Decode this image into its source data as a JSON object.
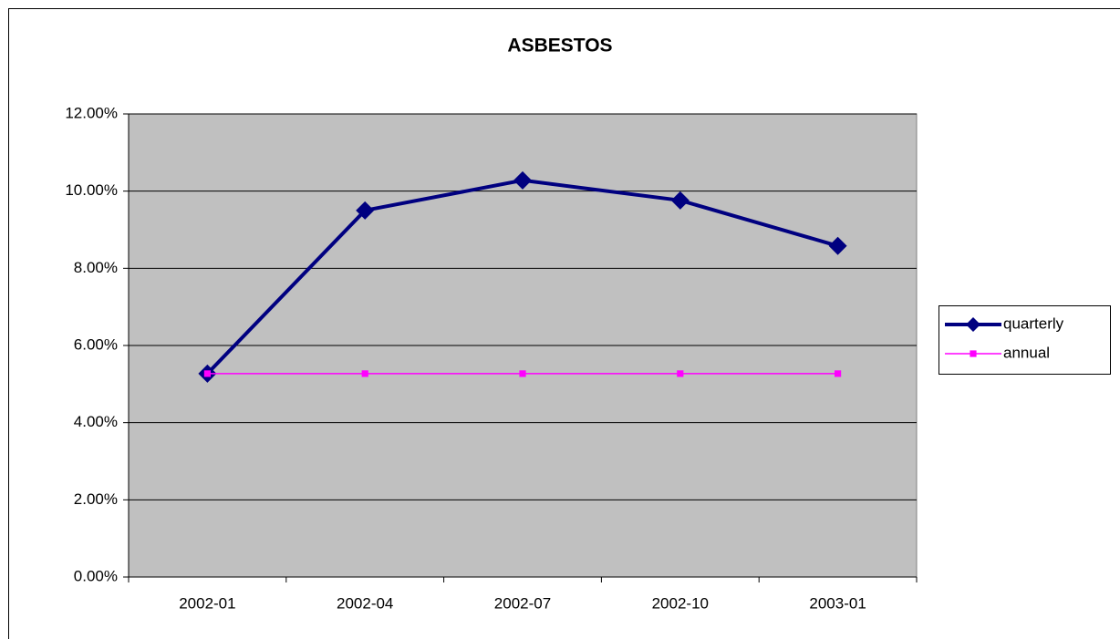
{
  "chart_data": {
    "type": "line",
    "title": "ASBESTOS",
    "categories": [
      "2002-01",
      "2002-04",
      "2002-07",
      "2002-10",
      "2003-01"
    ],
    "series": [
      {
        "name": "quarterly",
        "color": "#000080",
        "marker": "diamond",
        "values": [
          5.27,
          9.5,
          10.28,
          9.76,
          8.58
        ]
      },
      {
        "name": "annual",
        "color": "#ff00ff",
        "marker": "square",
        "values": [
          5.27,
          5.27,
          5.27,
          5.27,
          5.27
        ]
      }
    ],
    "ylim": [
      0,
      12
    ],
    "yticks": [
      {
        "value": 0,
        "label": "0.00%"
      },
      {
        "value": 2,
        "label": "2.00%"
      },
      {
        "value": 4,
        "label": "4.00%"
      },
      {
        "value": 6,
        "label": "6.00%"
      },
      {
        "value": 8,
        "label": "8.00%"
      },
      {
        "value": 10,
        "label": "10.00%"
      },
      {
        "value": 12,
        "label": "12.00%"
      }
    ],
    "grid": true,
    "legend": "right"
  }
}
